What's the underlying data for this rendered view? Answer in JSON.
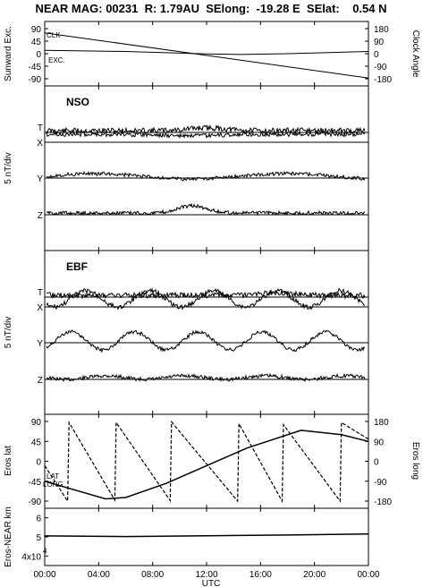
{
  "header": {
    "title": "NEAR MAG: 00231  R: 1.79AU  SElong:  -19.28 E  SElat:    0.54 N"
  },
  "time_axis": {
    "ticks": [
      "00:00",
      "04:00",
      "08:00",
      "12:00",
      "16:00",
      "20:00",
      "00:00"
    ],
    "label": "UTC"
  },
  "colors": {
    "line": "#000000",
    "grid": "#000000",
    "background": "#ffffff"
  },
  "chart_data": [
    {
      "type": "line",
      "panel": "sunward-clock",
      "ylabel_left": "Sunward Exc.",
      "ylabel_right": "Clock Angle",
      "yticks_left": [
        "90",
        "45",
        "0",
        "-45",
        "-90"
      ],
      "yticks_right": [
        "180",
        "90",
        "0",
        "-90",
        "-180"
      ],
      "ylim_left": [
        -90,
        90
      ],
      "ylim_right": [
        -180,
        180
      ],
      "xlim": [
        0,
        24
      ],
      "series": [
        {
          "name": "CLK",
          "axis": "right",
          "x": [
            0,
            24
          ],
          "y": [
            150,
            -175
          ]
        },
        {
          "name": "EXC.",
          "axis": "left",
          "x": [
            0,
            6,
            12,
            14.5,
            18,
            24
          ],
          "y": [
            12,
            8,
            -1,
            -3,
            0,
            8
          ]
        }
      ]
    },
    {
      "type": "line",
      "panel": "NSO",
      "label": "NSO",
      "ylabel": "5 nT/div",
      "traces": [
        "T",
        "X",
        "Y",
        "Z"
      ],
      "baselines": [
        "T",
        "X",
        "Y",
        "Z"
      ],
      "xlim": [
        0,
        24
      ]
    },
    {
      "type": "line",
      "panel": "EBF",
      "label": "EBF",
      "ylabel": "5 nT/div",
      "traces": [
        "T",
        "X",
        "Y",
        "Z"
      ],
      "baselines": [
        "T",
        "X",
        "Y",
        "Z"
      ],
      "xlim": [
        0,
        24
      ]
    },
    {
      "type": "line",
      "panel": "eros-lat-long",
      "ylabel_left": "Eros lat",
      "ylabel_right": "Eros long",
      "yticks_left": [
        "90",
        "45",
        "0",
        "-45",
        "-90"
      ],
      "yticks_right": [
        "180",
        "90",
        "0",
        "-90",
        "-180"
      ],
      "ylim_left": [
        -90,
        90
      ],
      "ylim_right": [
        -180,
        180
      ],
      "xlim": [
        0,
        24
      ],
      "series": [
        {
          "name": "LAT",
          "axis": "left",
          "x": [
            0,
            4.5,
            6,
            9,
            12,
            15,
            19,
            22,
            24
          ],
          "y": [
            -45,
            -85,
            -82,
            -50,
            -10,
            30,
            70,
            60,
            45
          ]
        },
        {
          "name": "LONG",
          "axis": "right",
          "x": [
            0,
            1.7,
            1.8,
            5.2,
            5.3,
            9.3,
            9.4,
            14.3,
            14.4,
            17.6,
            17.7,
            21.9,
            22.0,
            24
          ],
          "y": [
            -20,
            -180,
            175,
            -175,
            175,
            -178,
            178,
            -180,
            170,
            -180,
            165,
            -180,
            175,
            100
          ]
        }
      ]
    },
    {
      "type": "line",
      "panel": "eros-near-km",
      "ylabel": "Eros-NEAR km",
      "yticks": [
        "6",
        "5",
        "4x10"
      ],
      "ytick_exponent": "4",
      "ylim": [
        3.5,
        6.5
      ],
      "xlim": [
        0,
        24
      ],
      "series": [
        {
          "x": [
            0,
            6,
            12,
            18,
            24
          ],
          "y": [
            5.05,
            5.02,
            5.06,
            5.1,
            5.15
          ]
        }
      ]
    }
  ]
}
